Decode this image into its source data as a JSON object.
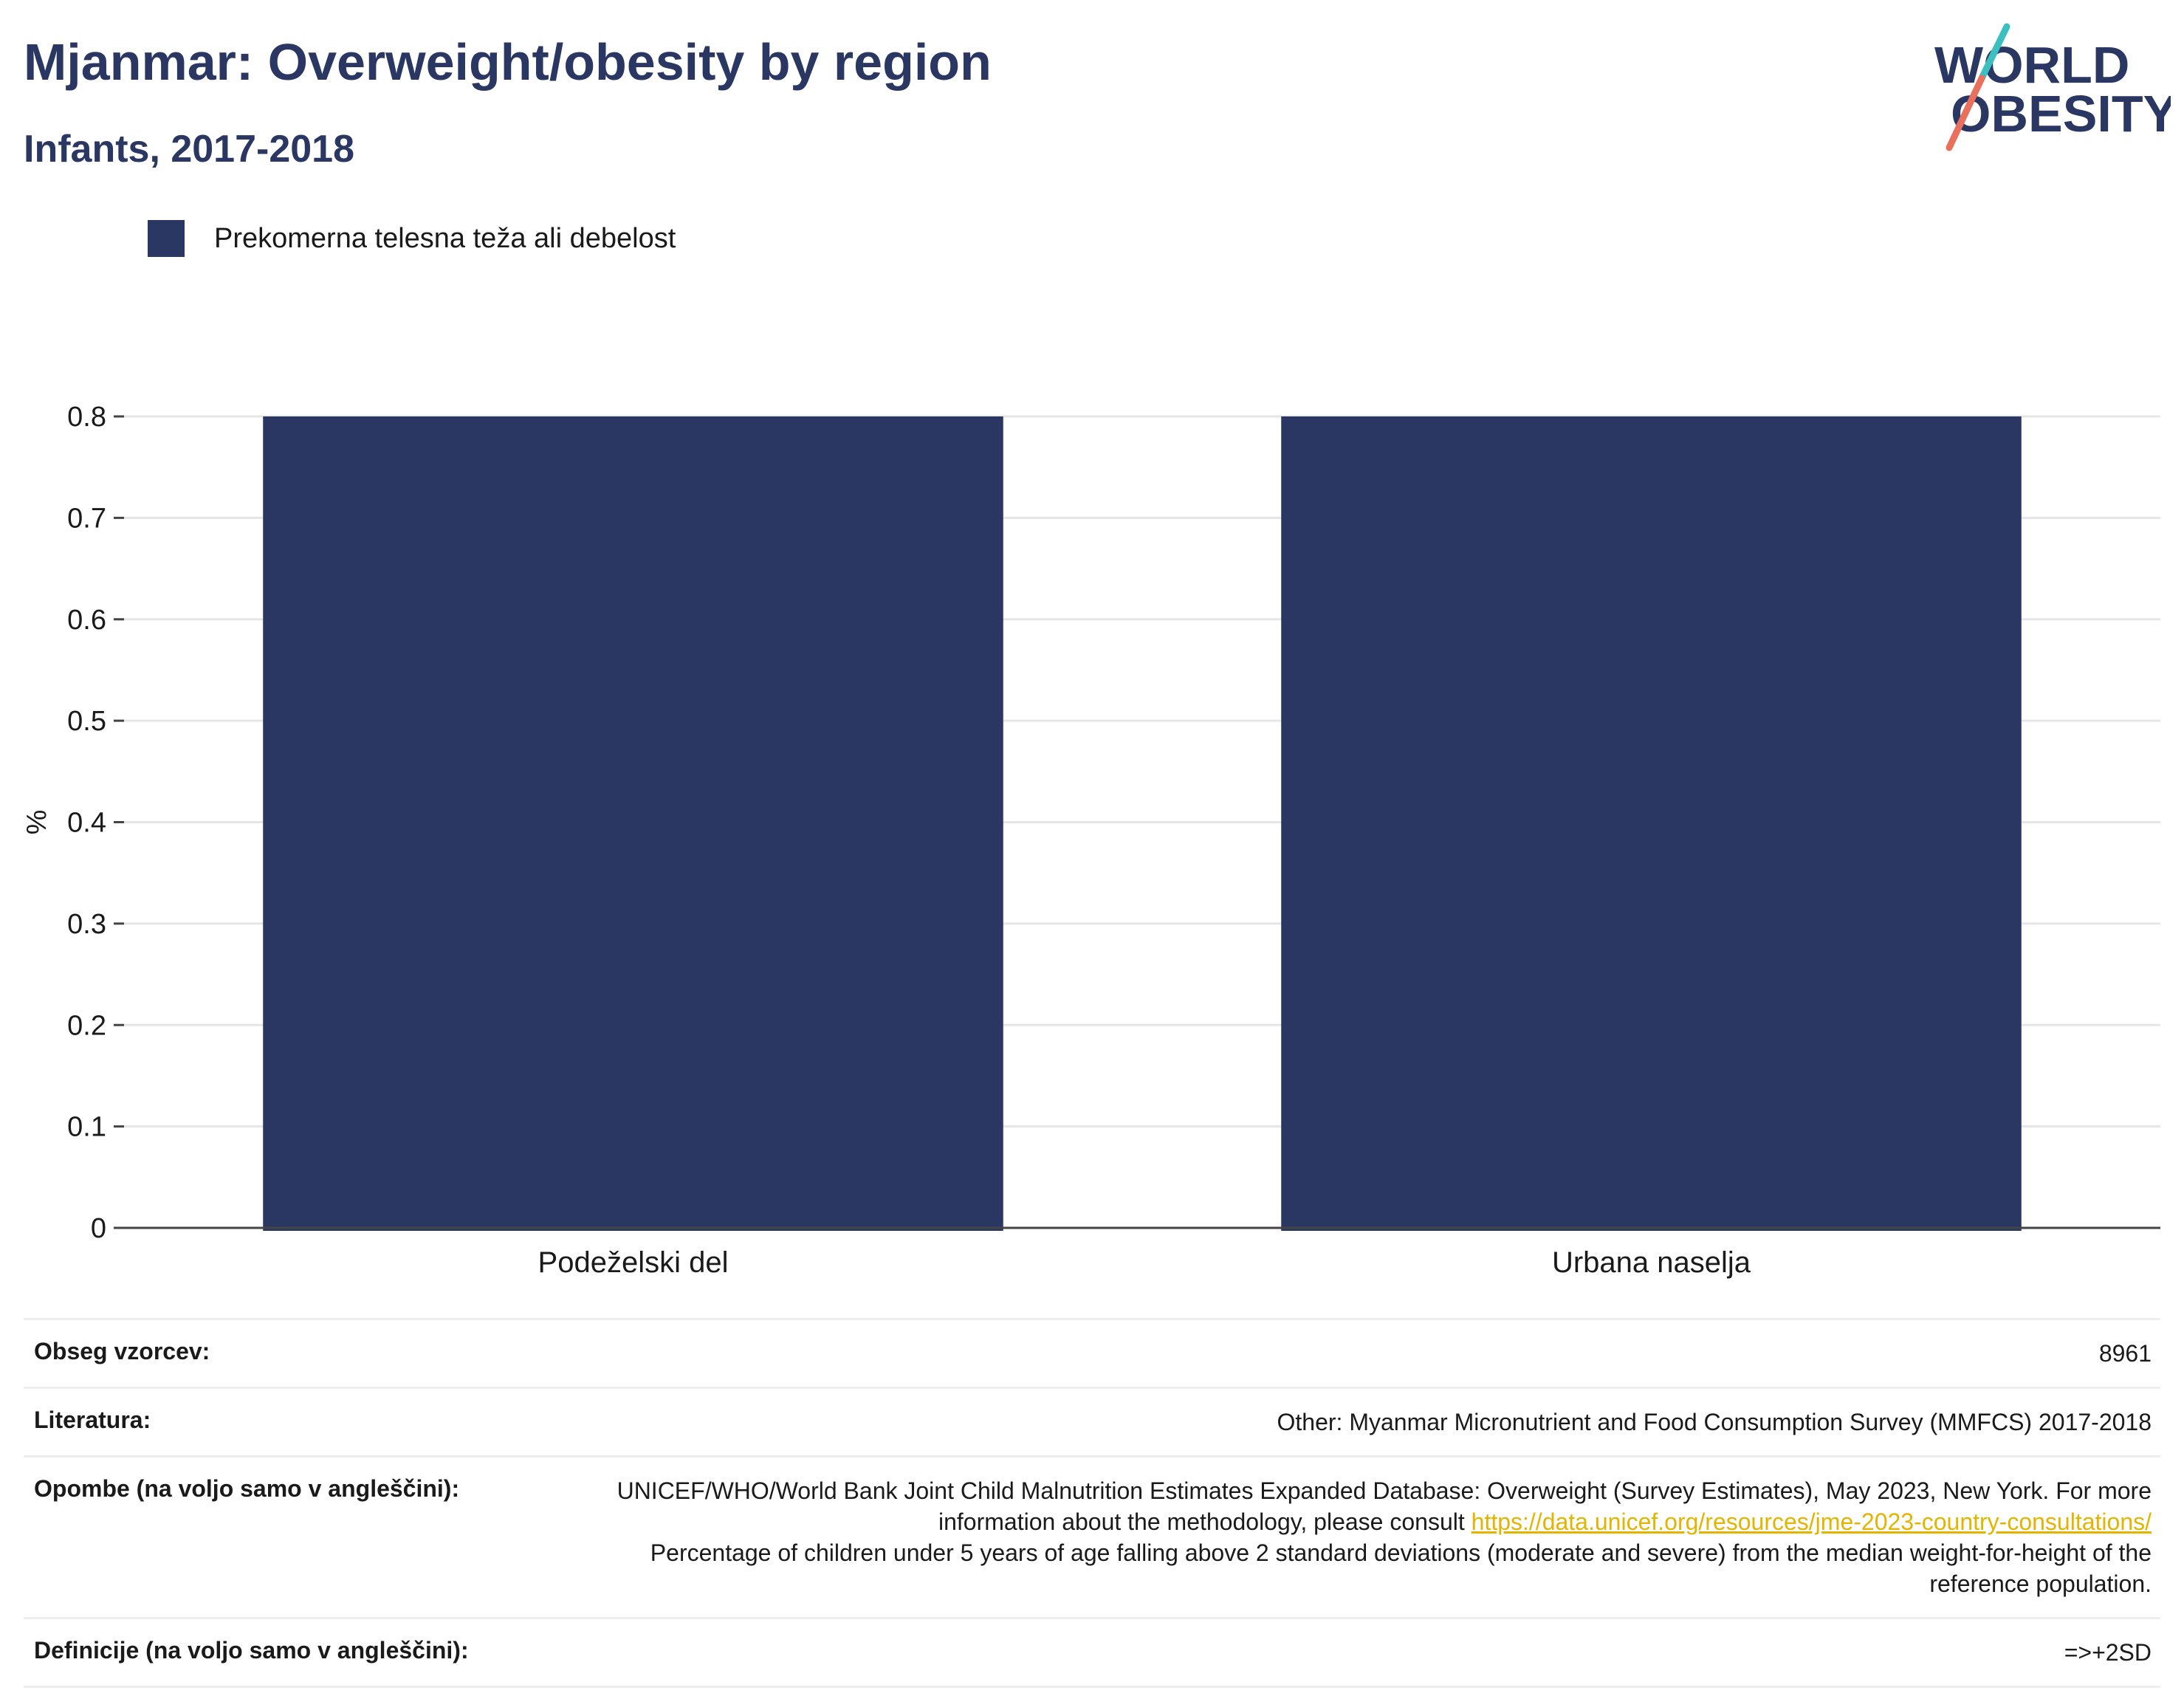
{
  "header": {
    "title": "Mjanmar: Overweight/obesity by region",
    "subtitle": "Infants, 2017-2018"
  },
  "logo": {
    "line1": "WORLD",
    "line2": "OBESITY",
    "colors": {
      "text": "#2b3763",
      "teal": "#3bbfc0",
      "coral": "#e8705c"
    }
  },
  "chart_data": {
    "type": "bar",
    "categories": [
      "Podeželski del",
      "Urbana naselja"
    ],
    "series": [
      {
        "name": "Prekomerna telesna teža ali debelost",
        "values": [
          0.8,
          0.8
        ],
        "color": "#2b3763"
      }
    ],
    "ylabel": "%",
    "ylim": [
      0,
      0.8
    ],
    "yticks": [
      0,
      0.1,
      0.2,
      0.3,
      0.4,
      0.5,
      0.6,
      0.7,
      0.8
    ],
    "grid": true,
    "legend_position": "top-left"
  },
  "meta": {
    "sample_label": "Obseg vzorcev:",
    "sample_value": "8961",
    "source_label": "Literatura:",
    "source_value": "Other: Myanmar Micronutrient and Food Consumption Survey (MMFCS) 2017-2018",
    "notes_label": "Opombe (na voljo samo v angleščini):",
    "notes_text_1": "UNICEF/WHO/World Bank Joint Child Malnutrition Estimates Expanded Database: Overweight (Survey Estimates), May 2023, New York. For more information about the methodology, please consult ",
    "notes_link": "https://data.unicef.org/resources/jme-2023-country-consultations/",
    "notes_text_2": "Percentage of children under 5 years of age falling above 2 standard deviations (moderate and severe) from the median weight-for-height of the reference population.",
    "definition_label": "Definicije (na voljo samo v angleščini):",
    "definition_value": "=>+2SD"
  }
}
